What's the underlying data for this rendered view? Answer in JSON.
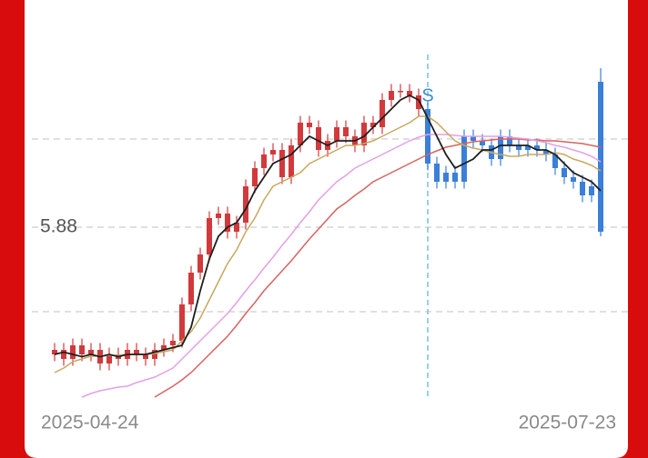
{
  "chart_data": {
    "type": "candlestick",
    "categories": [
      "2025-04-24",
      null,
      null,
      null,
      null,
      null,
      null,
      null,
      null,
      null,
      null,
      null,
      null,
      null,
      null,
      null,
      null,
      null,
      null,
      null,
      null,
      null,
      null,
      null,
      null,
      null,
      null,
      null,
      null,
      null,
      null,
      null,
      null,
      null,
      null,
      null,
      null,
      null,
      null,
      null,
      null,
      null,
      null,
      null,
      null,
      null,
      null,
      null,
      null,
      null,
      null,
      null,
      null,
      null,
      null,
      null,
      null,
      null,
      null,
      null,
      "2025-07-23"
    ],
    "open": [
      5.6,
      5.61,
      5.59,
      5.62,
      5.6,
      5.61,
      5.58,
      5.6,
      5.59,
      5.61,
      5.6,
      5.59,
      5.61,
      5.62,
      5.63,
      5.71,
      5.78,
      5.82,
      5.9,
      5.91,
      5.87,
      5.89,
      5.97,
      6.01,
      6.04,
      6.05,
      5.99,
      6.06,
      6.11,
      6.1,
      6.05,
      6.07,
      6.1,
      6.08,
      6.06,
      6.11,
      6.1,
      6.16,
      6.18,
      6.18,
      6.17,
      6.14,
      6.02,
      5.98,
      6.0,
      5.98,
      6.08,
      6.07,
      6.06,
      6.03,
      6.08,
      6.06,
      6.05,
      6.06,
      6.05,
      6.04,
      6.01,
      5.99,
      5.98,
      5.95,
      6.2
    ],
    "high": [
      5.625,
      5.625,
      5.635,
      5.635,
      5.625,
      5.625,
      5.615,
      5.615,
      5.625,
      5.625,
      5.615,
      5.625,
      5.635,
      5.645,
      5.725,
      5.795,
      5.835,
      5.915,
      5.925,
      5.925,
      5.905,
      5.985,
      6.025,
      6.055,
      6.065,
      6.065,
      6.075,
      6.125,
      6.125,
      6.115,
      6.085,
      6.115,
      6.115,
      6.095,
      6.125,
      6.125,
      6.175,
      6.195,
      6.195,
      6.195,
      6.185,
      6.155,
      6.035,
      6.015,
      6.015,
      6.095,
      6.095,
      6.085,
      6.075,
      6.095,
      6.095,
      6.075,
      6.075,
      6.075,
      6.065,
      6.055,
      6.025,
      6.005,
      5.995,
      5.985,
      6.23
    ],
    "low": [
      5.585,
      5.575,
      5.575,
      5.585,
      5.585,
      5.565,
      5.565,
      5.575,
      5.575,
      5.585,
      5.575,
      5.575,
      5.595,
      5.605,
      5.615,
      5.695,
      5.765,
      5.805,
      5.885,
      5.855,
      5.855,
      5.875,
      5.955,
      5.995,
      6.025,
      5.975,
      5.975,
      6.045,
      6.085,
      6.035,
      6.035,
      6.055,
      6.065,
      6.045,
      6.045,
      6.085,
      6.085,
      6.145,
      6.165,
      6.155,
      6.125,
      6.005,
      5.965,
      5.965,
      5.965,
      5.965,
      6.055,
      6.045,
      6.015,
      6.015,
      6.045,
      6.035,
      6.035,
      6.035,
      6.025,
      5.995,
      5.975,
      5.965,
      5.935,
      5.935,
      5.86
    ],
    "close": [
      5.61,
      5.59,
      5.62,
      5.6,
      5.61,
      5.58,
      5.6,
      5.59,
      5.61,
      5.6,
      5.59,
      5.61,
      5.62,
      5.63,
      5.71,
      5.78,
      5.82,
      5.9,
      5.91,
      5.87,
      5.89,
      5.97,
      6.01,
      6.04,
      6.05,
      5.99,
      6.06,
      6.11,
      6.1,
      6.05,
      6.07,
      6.1,
      6.08,
      6.06,
      6.11,
      6.1,
      6.16,
      6.18,
      6.18,
      6.17,
      6.14,
      6.02,
      5.98,
      6.0,
      5.98,
      6.08,
      6.07,
      6.06,
      6.03,
      6.08,
      6.06,
      6.05,
      6.06,
      6.05,
      6.04,
      6.01,
      5.99,
      5.98,
      5.95,
      5.97,
      5.87
    ],
    "before_signal_color": "#d2393c",
    "after_signal_color": "#3b7fd9",
    "series": [
      {
        "color": "#d9625f",
        "values": [
          null,
          null,
          null,
          null,
          null,
          null,
          null,
          null,
          null,
          null,
          null,
          5.506,
          5.518,
          5.53,
          5.544,
          5.56,
          5.58,
          5.6,
          5.62,
          5.64,
          5.664,
          5.69,
          5.714,
          5.74,
          5.762,
          5.784,
          5.806,
          5.83,
          5.854,
          5.876,
          5.898,
          5.92,
          5.934,
          5.95,
          5.964,
          5.98,
          5.99,
          6.0,
          6.01,
          6.02,
          6.03,
          6.04,
          6.048,
          6.056,
          6.06,
          6.064,
          6.068,
          6.07,
          6.072,
          6.074,
          6.074,
          6.074,
          6.072,
          6.072,
          6.07,
          6.07,
          6.068,
          6.066,
          6.064,
          6.06,
          6.056
        ]
      },
      {
        "color": "#e49fe6",
        "values": [
          null,
          null,
          null,
          5.506,
          5.514,
          5.52,
          5.524,
          5.528,
          5.53,
          5.538,
          5.544,
          5.55,
          5.56,
          5.57,
          5.59,
          5.61,
          5.63,
          5.65,
          5.67,
          5.69,
          5.714,
          5.74,
          5.764,
          5.79,
          5.814,
          5.84,
          5.864,
          5.89,
          5.914,
          5.94,
          5.96,
          5.98,
          5.994,
          6.01,
          6.02,
          6.03,
          6.04,
          6.05,
          6.06,
          6.07,
          6.078,
          6.084,
          6.084,
          6.084,
          6.082,
          6.08,
          6.08,
          6.08,
          6.08,
          6.08,
          6.078,
          6.076,
          6.074,
          6.07,
          6.066,
          6.06,
          6.056,
          6.05,
          6.044,
          6.036,
          6.024
        ]
      },
      {
        "color": "#c9a760",
        "values": [
          5.56,
          5.57,
          5.584,
          5.59,
          5.596,
          5.596,
          5.598,
          5.598,
          5.6,
          5.6,
          5.6,
          5.602,
          5.606,
          5.61,
          5.63,
          5.65,
          5.68,
          5.72,
          5.76,
          5.8,
          5.83,
          5.87,
          5.9,
          5.94,
          5.97,
          5.98,
          5.99,
          6.0,
          6.02,
          6.03,
          6.04,
          6.05,
          6.06,
          6.06,
          6.064,
          6.07,
          6.08,
          6.09,
          6.1,
          6.11,
          6.124,
          6.124,
          6.11,
          6.09,
          6.07,
          6.06,
          6.054,
          6.05,
          6.044,
          6.04,
          6.036,
          6.036,
          6.04,
          6.04,
          6.04,
          6.044,
          6.04,
          6.03,
          6.024,
          6.016,
          6.004
        ]
      },
      {
        "color": "#1e1e1e",
        "values": [
          5.6,
          5.605,
          5.6,
          5.595,
          5.6,
          5.595,
          5.6,
          5.595,
          5.6,
          5.6,
          5.6,
          5.605,
          5.61,
          5.615,
          5.62,
          5.66,
          5.74,
          5.81,
          5.86,
          5.88,
          5.89,
          5.92,
          5.96,
          5.99,
          6.02,
          6.03,
          6.04,
          6.06,
          6.08,
          6.07,
          6.06,
          6.07,
          6.07,
          6.07,
          6.08,
          6.1,
          6.12,
          6.14,
          6.16,
          6.17,
          6.16,
          6.12,
          6.08,
          6.04,
          6.01,
          6.02,
          6.03,
          6.05,
          6.05,
          6.06,
          6.06,
          6.06,
          6.06,
          6.05,
          6.05,
          6.04,
          6.02,
          6.0,
          5.99,
          5.98,
          5.96
        ]
      }
    ],
    "signal": {
      "label": "S",
      "index": 41,
      "color": "#3a8fd6"
    },
    "ylim": [
      5.5,
      6.26
    ],
    "yticks": [
      5.88
    ],
    "grid": true
  }
}
